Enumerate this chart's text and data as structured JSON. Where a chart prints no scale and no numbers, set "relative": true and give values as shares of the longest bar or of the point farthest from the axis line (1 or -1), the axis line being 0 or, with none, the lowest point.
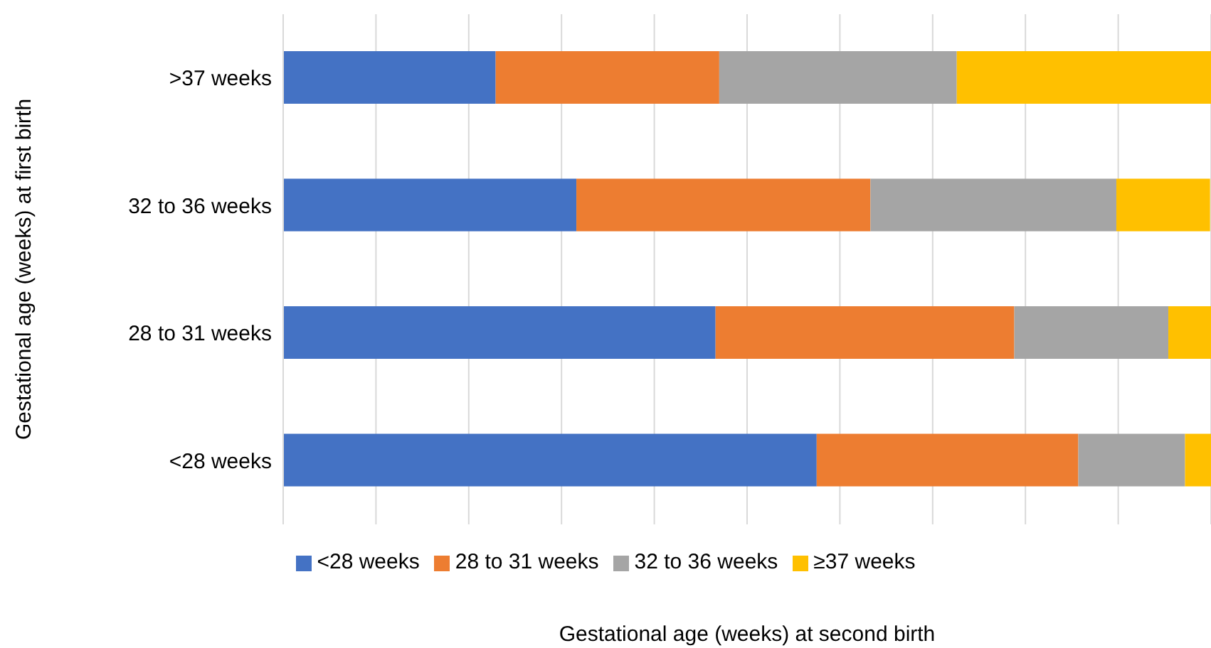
{
  "chart_data": {
    "type": "bar",
    "orientation": "horizontal",
    "stacked": true,
    "relative": true,
    "xlabel": "Gestational age (weeks) at second birth",
    "ylabel": "Gestational age (weeks) at first birth",
    "categories": [
      ">37 weeks",
      "32 to 36 weeks",
      "28 to 31 weeks",
      "<28 weeks"
    ],
    "series": [
      {
        "name": "<28 weeks",
        "color": "#4472c4",
        "values": [
          0.229,
          0.316,
          0.466,
          0.575
        ]
      },
      {
        "name": "28 to 31 weeks",
        "color": "#ed7d31",
        "values": [
          0.241,
          0.317,
          0.322,
          0.282
        ]
      },
      {
        "name": "32 to 36 weeks",
        "color": "#a5a5a5",
        "values": [
          0.256,
          0.265,
          0.166,
          0.115
        ]
      },
      {
        "name": "≥37 weeks",
        "color": "#ffc000",
        "values": [
          0.274,
          0.101,
          0.046,
          0.028
        ]
      }
    ],
    "grid": "x",
    "legend": "bottom"
  }
}
